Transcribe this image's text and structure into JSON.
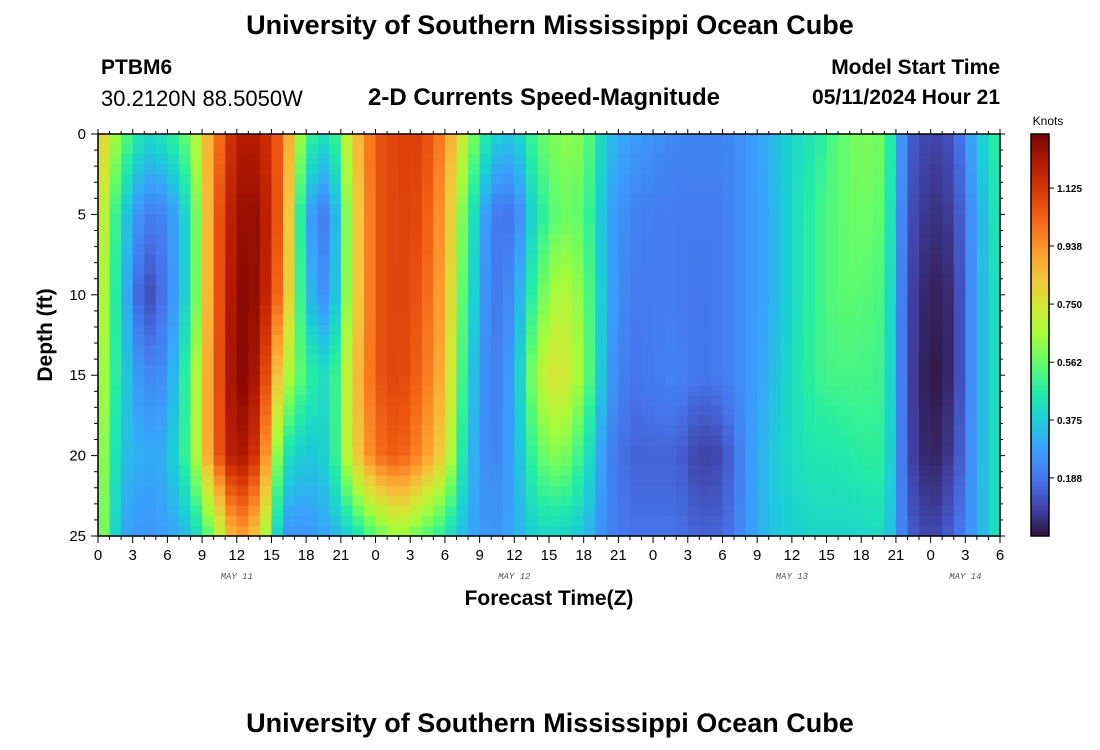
{
  "header": {
    "title": "University of Southern Mississippi Ocean Cube",
    "station_id": "PTBM6",
    "station_coords": "30.2120N  88.5050W",
    "plot_title": "2-D Currents Speed-Magnitude",
    "model_start_label": "Model Start Time",
    "model_start_value": "05/11/2024 Hour 21"
  },
  "footer": {
    "title": "University of Southern Mississippi Ocean Cube"
  },
  "chart_data": {
    "type": "heatmap",
    "title": "2-D Currents Speed-Magnitude",
    "xlabel": "Forecast Time(Z)",
    "ylabel": "Depth (ft)",
    "colorbar_label": "Knots",
    "colorbar_ticks": [
      "0.188",
      "0.375",
      "0.562",
      "0.750",
      "0.938",
      "1.125"
    ],
    "colorbar_tick_values": [
      0.188,
      0.375,
      0.562,
      0.75,
      0.938,
      1.125
    ],
    "value_range": [
      0.0,
      1.3
    ],
    "x_range_hours": [
      0,
      78
    ],
    "x_tick_labels": [
      "0",
      "3",
      "6",
      "9",
      "12",
      "15",
      "18",
      "21",
      "0",
      "3",
      "6",
      "9",
      "12",
      "15",
      "18",
      "21",
      "0",
      "3",
      "6",
      "9",
      "12",
      "15",
      "18",
      "21",
      "0",
      "3",
      "6"
    ],
    "x_day_labels": [
      {
        "label": "MAY 11",
        "hour": 12
      },
      {
        "label": "MAY 12",
        "hour": 36
      },
      {
        "label": "MAY 13",
        "hour": 60
      },
      {
        "label": "MAY 14",
        "hour": 75
      }
    ],
    "ylim": [
      0,
      25
    ],
    "y_ticks": [
      0,
      5,
      10,
      15,
      20,
      25
    ],
    "depth_levels_ft": [
      0,
      5,
      10,
      15,
      20,
      25
    ],
    "time_hours": [
      0,
      2,
      4,
      6,
      8,
      10,
      12,
      14,
      16,
      18,
      20,
      22,
      24,
      26,
      28,
      30,
      32,
      34,
      36,
      38,
      40,
      42,
      44,
      46,
      48,
      50,
      52,
      54,
      56,
      58,
      60,
      62,
      64,
      66,
      68,
      70,
      72,
      74,
      76,
      78
    ],
    "speed_knots": [
      [
        0.85,
        0.58,
        0.4,
        0.45,
        0.6,
        0.95,
        1.2,
        1.2,
        1.0,
        0.52,
        0.4,
        0.8,
        1.05,
        1.1,
        1.1,
        0.95,
        0.65,
        0.4,
        0.35,
        0.55,
        0.62,
        0.6,
        0.35,
        0.28,
        0.25,
        0.22,
        0.22,
        0.22,
        0.25,
        0.32,
        0.4,
        0.45,
        0.55,
        0.6,
        0.58,
        0.15,
        0.08,
        0.12,
        0.35,
        0.5
      ],
      [
        0.8,
        0.4,
        0.2,
        0.22,
        0.45,
        1.0,
        1.25,
        1.25,
        1.0,
        0.3,
        0.18,
        0.75,
        1.05,
        1.1,
        1.08,
        0.9,
        0.5,
        0.2,
        0.18,
        0.45,
        0.58,
        0.55,
        0.3,
        0.22,
        0.2,
        0.2,
        0.2,
        0.2,
        0.25,
        0.3,
        0.4,
        0.5,
        0.55,
        0.58,
        0.55,
        0.12,
        0.05,
        0.08,
        0.3,
        0.48
      ],
      [
        0.75,
        0.38,
        0.08,
        0.2,
        0.45,
        1.0,
        1.28,
        1.25,
        0.95,
        0.35,
        0.22,
        0.75,
        1.05,
        1.1,
        1.05,
        0.88,
        0.45,
        0.18,
        0.25,
        0.55,
        0.7,
        0.6,
        0.3,
        0.2,
        0.2,
        0.2,
        0.18,
        0.2,
        0.25,
        0.3,
        0.4,
        0.5,
        0.55,
        0.55,
        0.52,
        0.1,
        0.02,
        0.05,
        0.3,
        0.45
      ],
      [
        0.72,
        0.4,
        0.22,
        0.25,
        0.55,
        1.0,
        1.3,
        1.2,
        0.72,
        0.5,
        0.4,
        0.8,
        1.05,
        1.1,
        1.02,
        0.85,
        0.4,
        0.18,
        0.3,
        0.68,
        0.78,
        0.62,
        0.28,
        0.18,
        0.2,
        0.22,
        0.18,
        0.2,
        0.25,
        0.32,
        0.42,
        0.5,
        0.52,
        0.52,
        0.5,
        0.1,
        0.0,
        0.05,
        0.3,
        0.45
      ],
      [
        0.7,
        0.35,
        0.3,
        0.32,
        0.55,
        1.0,
        1.25,
        1.1,
        0.45,
        0.35,
        0.4,
        0.78,
        1.0,
        1.05,
        0.95,
        0.78,
        0.35,
        0.2,
        0.3,
        0.55,
        0.62,
        0.48,
        0.22,
        0.15,
        0.15,
        0.15,
        0.08,
        0.1,
        0.25,
        0.35,
        0.42,
        0.45,
        0.45,
        0.48,
        0.48,
        0.1,
        0.02,
        0.08,
        0.3,
        0.45
      ],
      [
        0.68,
        0.3,
        0.25,
        0.28,
        0.35,
        0.6,
        0.95,
        0.8,
        0.25,
        0.25,
        0.3,
        0.4,
        0.55,
        0.65,
        0.55,
        0.45,
        0.3,
        0.25,
        0.3,
        0.4,
        0.4,
        0.35,
        0.22,
        0.18,
        0.18,
        0.18,
        0.15,
        0.15,
        0.25,
        0.35,
        0.38,
        0.4,
        0.4,
        0.4,
        0.42,
        0.15,
        0.08,
        0.15,
        0.3,
        0.45
      ]
    ]
  }
}
